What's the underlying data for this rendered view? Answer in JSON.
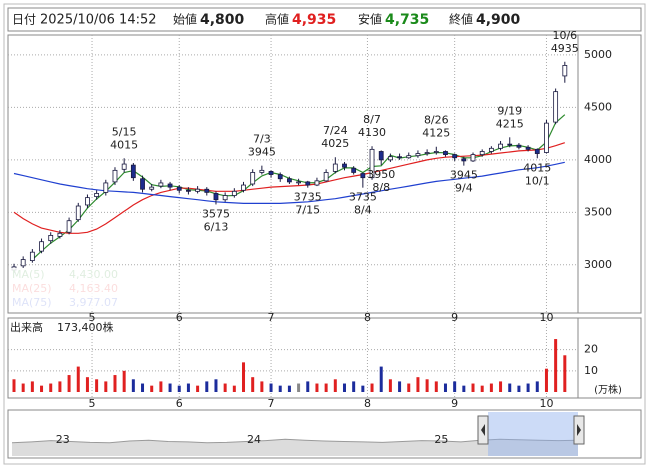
{
  "header": {
    "date_label": "日付",
    "datetime": "2025/10/06 14:52",
    "fields": [
      {
        "label": "始値",
        "value": "4,800"
      },
      {
        "label": "高値",
        "value": "4,935"
      },
      {
        "label": "安値",
        "value": "4,735"
      },
      {
        "label": "終値",
        "value": "4,900"
      }
    ]
  },
  "chart_data": [
    {
      "type": "candlestick",
      "x": [
        0,
        2,
        4,
        6,
        8,
        10,
        12,
        14,
        16,
        18,
        20,
        22,
        24,
        26,
        28,
        30,
        32,
        34,
        36,
        38,
        40,
        42,
        44,
        46,
        48,
        50,
        52,
        54,
        56,
        58,
        60,
        62,
        64,
        66,
        68,
        70,
        72,
        74,
        76,
        78,
        80,
        82,
        84,
        86,
        88,
        90,
        92,
        94,
        96,
        98,
        100,
        102,
        104,
        106,
        108,
        110,
        112,
        114,
        116,
        118,
        120
      ],
      "candles": [
        {
          "open": 2950,
          "high": 3010,
          "low": 2920,
          "close": 2980
        },
        {
          "open": 2990,
          "high": 3080,
          "low": 2970,
          "close": 3050
        },
        {
          "open": 3040,
          "high": 3150,
          "low": 3020,
          "close": 3120
        },
        {
          "open": 3130,
          "high": 3250,
          "low": 3110,
          "close": 3220
        },
        {
          "open": 3230,
          "high": 3310,
          "low": 3200,
          "close": 3280
        },
        {
          "open": 3270,
          "high": 3330,
          "low": 3250,
          "close": 3300
        },
        {
          "open": 3310,
          "high": 3450,
          "low": 3290,
          "close": 3420
        },
        {
          "open": 3430,
          "high": 3590,
          "low": 3410,
          "close": 3560
        },
        {
          "open": 3570,
          "high": 3670,
          "low": 3540,
          "close": 3640
        },
        {
          "open": 3650,
          "high": 3710,
          "low": 3620,
          "close": 3680
        },
        {
          "open": 3690,
          "high": 3810,
          "low": 3660,
          "close": 3780
        },
        {
          "open": 3790,
          "high": 3930,
          "low": 3760,
          "close": 3900
        },
        {
          "open": 3910,
          "high": 4015,
          "low": 3880,
          "close": 3960
        },
        {
          "open": 3950,
          "high": 3970,
          "low": 3800,
          "close": 3830
        },
        {
          "open": 3820,
          "high": 3850,
          "low": 3690,
          "close": 3720
        },
        {
          "open": 3720,
          "high": 3770,
          "low": 3700,
          "close": 3740
        },
        {
          "open": 3750,
          "high": 3810,
          "low": 3730,
          "close": 3780
        },
        {
          "open": 3770,
          "high": 3790,
          "low": 3710,
          "close": 3740
        },
        {
          "open": 3740,
          "high": 3760,
          "low": 3680,
          "close": 3710
        },
        {
          "open": 3710,
          "high": 3740,
          "low": 3670,
          "close": 3700
        },
        {
          "open": 3700,
          "high": 3750,
          "low": 3680,
          "close": 3720
        },
        {
          "open": 3720,
          "high": 3740,
          "low": 3660,
          "close": 3690
        },
        {
          "open": 3680,
          "high": 3700,
          "low": 3575,
          "close": 3620
        },
        {
          "open": 3620,
          "high": 3690,
          "low": 3600,
          "close": 3660
        },
        {
          "open": 3660,
          "high": 3730,
          "low": 3640,
          "close": 3700
        },
        {
          "open": 3710,
          "high": 3790,
          "low": 3690,
          "close": 3760
        },
        {
          "open": 3770,
          "high": 3910,
          "low": 3750,
          "close": 3880
        },
        {
          "open": 3880,
          "high": 3945,
          "low": 3860,
          "close": 3900
        },
        {
          "open": 3890,
          "high": 3900,
          "low": 3830,
          "close": 3860
        },
        {
          "open": 3860,
          "high": 3880,
          "low": 3790,
          "close": 3820
        },
        {
          "open": 3820,
          "high": 3840,
          "low": 3770,
          "close": 3790
        },
        {
          "open": 3790,
          "high": 3820,
          "low": 3760,
          "close": 3790
        },
        {
          "open": 3790,
          "high": 3800,
          "low": 3735,
          "close": 3760
        },
        {
          "open": 3760,
          "high": 3830,
          "low": 3750,
          "close": 3800
        },
        {
          "open": 3800,
          "high": 3910,
          "low": 3790,
          "close": 3880
        },
        {
          "open": 3890,
          "high": 4025,
          "low": 3870,
          "close": 3960
        },
        {
          "open": 3960,
          "high": 3980,
          "low": 3900,
          "close": 3930
        },
        {
          "open": 3920,
          "high": 3940,
          "low": 3860,
          "close": 3880
        },
        {
          "open": 3870,
          "high": 3880,
          "low": 3735,
          "close": 3830
        },
        {
          "open": 3830,
          "high": 4130,
          "low": 3810,
          "close": 4100
        },
        {
          "open": 4080,
          "high": 4090,
          "low": 3950,
          "close": 4000
        },
        {
          "open": 4000,
          "high": 4060,
          "low": 3980,
          "close": 4030
        },
        {
          "open": 4030,
          "high": 4060,
          "low": 4000,
          "close": 4020
        },
        {
          "open": 4020,
          "high": 4070,
          "low": 4010,
          "close": 4040
        },
        {
          "open": 4040,
          "high": 4090,
          "low": 4020,
          "close": 4060
        },
        {
          "open": 4060,
          "high": 4100,
          "low": 4040,
          "close": 4070
        },
        {
          "open": 4070,
          "high": 4125,
          "low": 4050,
          "close": 4080
        },
        {
          "open": 4080,
          "high": 4090,
          "low": 4030,
          "close": 4050
        },
        {
          "open": 4050,
          "high": 4060,
          "low": 3990,
          "close": 4020
        },
        {
          "open": 4010,
          "high": 4030,
          "low": 3945,
          "close": 3990
        },
        {
          "open": 3990,
          "high": 4070,
          "low": 3980,
          "close": 4050
        },
        {
          "open": 4050,
          "high": 4100,
          "low": 4030,
          "close": 4080
        },
        {
          "open": 4080,
          "high": 4130,
          "low": 4060,
          "close": 4110
        },
        {
          "open": 4110,
          "high": 4180,
          "low": 4090,
          "close": 4150
        },
        {
          "open": 4150,
          "high": 4215,
          "low": 4120,
          "close": 4140
        },
        {
          "open": 4140,
          "high": 4160,
          "low": 4100,
          "close": 4120
        },
        {
          "open": 4120,
          "high": 4140,
          "low": 4080,
          "close": 4100
        },
        {
          "open": 4100,
          "high": 4110,
          "low": 4015,
          "close": 4060
        },
        {
          "open": 4070,
          "high": 4380,
          "low": 4060,
          "close": 4350
        },
        {
          "open": 4360,
          "high": 4680,
          "low": 4340,
          "close": 4650
        },
        {
          "open": 4800,
          "high": 4935,
          "low": 4735,
          "close": 4900
        }
      ],
      "up_color": "#ffffff",
      "down_color": "#1c2c8c",
      "edge_color": "#1a1a40",
      "series": [
        {
          "name": "MA(5)",
          "color": "#2e8b2e",
          "last_label": "4,430.00",
          "values": [
            null,
            null,
            3050,
            3130,
            3207,
            3267,
            3333,
            3427,
            3540,
            3627,
            3700,
            3787,
            3880,
            3897,
            3837,
            3763,
            3747,
            3753,
            3743,
            3717,
            3710,
            3703,
            3677,
            3657,
            3660,
            3707,
            3780,
            3847,
            3880,
            3860,
            3823,
            3800,
            3780,
            3783,
            3813,
            3880,
            3923,
            3923,
            3880,
            3937,
            3943,
            4043,
            4017,
            4030,
            4040,
            4057,
            4070,
            4067,
            4050,
            4020,
            4020,
            4040,
            4080,
            4113,
            4133,
            4137,
            4120,
            4093,
            4170,
            4353,
            4430
          ]
        },
        {
          "name": "MA(25)",
          "color": "#e02020",
          "last_label": "4,163.40",
          "values": [
            3500,
            3440,
            3390,
            3350,
            3330,
            3310,
            3300,
            3300,
            3310,
            3340,
            3390,
            3450,
            3510,
            3570,
            3620,
            3660,
            3690,
            3710,
            3730,
            3730,
            3720,
            3710,
            3700,
            3700,
            3700,
            3710,
            3720,
            3730,
            3740,
            3745,
            3750,
            3755,
            3760,
            3770,
            3790,
            3810,
            3830,
            3845,
            3860,
            3880,
            3900,
            3920,
            3940,
            3960,
            3980,
            4000,
            4015,
            4025,
            4030,
            4035,
            4040,
            4045,
            4055,
            4065,
            4075,
            4085,
            4090,
            4095,
            4110,
            4135,
            4163.4
          ]
        },
        {
          "name": "MA(75)",
          "color": "#2040d0",
          "last_label": "3,977.07",
          "values": [
            3870,
            3850,
            3830,
            3810,
            3790,
            3770,
            3755,
            3740,
            3725,
            3715,
            3705,
            3700,
            3695,
            3690,
            3680,
            3670,
            3660,
            3650,
            3640,
            3630,
            3620,
            3610,
            3600,
            3595,
            3590,
            3585,
            3585,
            3585,
            3585,
            3585,
            3590,
            3595,
            3600,
            3610,
            3620,
            3630,
            3645,
            3660,
            3675,
            3690,
            3705,
            3720,
            3735,
            3750,
            3765,
            3780,
            3795,
            3805,
            3815,
            3825,
            3835,
            3845,
            3860,
            3875,
            3890,
            3905,
            3915,
            3925,
            3940,
            3958,
            3977.07
          ]
        }
      ],
      "annotations": [
        {
          "date": "5/15",
          "value": 4015,
          "x": 24,
          "kind": "high"
        },
        {
          "date": "6/13",
          "value": 3575,
          "x": 44,
          "kind": "low"
        },
        {
          "date": "7/3",
          "value": 3945,
          "x": 54,
          "kind": "high"
        },
        {
          "date": "7/15",
          "value": 3735,
          "x": 64,
          "kind": "low"
        },
        {
          "date": "7/24",
          "value": 4025,
          "x": 70,
          "kind": "high"
        },
        {
          "date": "8/4",
          "value": 3735,
          "x": 76,
          "kind": "low"
        },
        {
          "date": "8/7",
          "value": 4130,
          "x": 78,
          "kind": "high"
        },
        {
          "date": "8/8",
          "value": 3950,
          "x": 80,
          "kind": "low"
        },
        {
          "date": "8/26",
          "value": 4125,
          "x": 92,
          "kind": "high"
        },
        {
          "date": "9/4",
          "value": 3945,
          "x": 98,
          "kind": "low"
        },
        {
          "date": "9/19",
          "value": 4215,
          "x": 108,
          "kind": "high"
        },
        {
          "date": "10/1",
          "value": 4015,
          "x": 114,
          "kind": "low"
        },
        {
          "date": "10/6",
          "value": 4935,
          "x": 120,
          "kind": "high"
        }
      ],
      "xlim": [
        0,
        122
      ],
      "xticks": [
        {
          "value": 17,
          "label": "5"
        },
        {
          "value": 36,
          "label": "6"
        },
        {
          "value": 56,
          "label": "7"
        },
        {
          "value": 77,
          "label": "8"
        },
        {
          "value": 96,
          "label": "9"
        },
        {
          "value": 116,
          "label": "10"
        }
      ],
      "ylim": [
        2550,
        5190
      ],
      "yticks": [
        3000,
        3500,
        4000,
        4500,
        5000
      ],
      "grid": true
    },
    {
      "type": "bar",
      "title": "出来高",
      "value_label": "173,400株",
      "unit": "(万株)",
      "values": [
        6,
        4,
        5,
        3,
        4,
        5,
        8,
        12,
        7,
        6,
        5,
        8,
        10,
        6,
        4,
        3,
        5,
        4,
        3,
        4,
        3,
        5,
        6,
        4,
        3,
        14,
        7,
        5,
        4,
        3,
        3,
        4,
        5,
        4,
        4,
        6,
        4,
        5,
        3,
        4,
        12,
        6,
        5,
        4,
        7,
        6,
        5,
        4,
        5,
        3,
        4,
        3,
        4,
        5,
        4,
        3,
        4,
        5,
        11,
        25,
        17.34
      ],
      "up_color": "#e02020",
      "down_color": "#1c2c9c",
      "flat_color": "#888888",
      "ylim": [
        0,
        34
      ],
      "yticks": [
        10,
        20
      ],
      "grid": true
    },
    {
      "type": "area",
      "color": "#9a9a9a",
      "fill": "#dcdcdc",
      "values": [
        30,
        32,
        35,
        33,
        31,
        30,
        34,
        36,
        33,
        32,
        30,
        31,
        33,
        35,
        38,
        36,
        34,
        33,
        32,
        31,
        33,
        35,
        34,
        32,
        36,
        38,
        37,
        36,
        35,
        36
      ],
      "xlim": [
        0,
        29
      ],
      "ylim": [
        0,
        100
      ],
      "xticks": [
        {
          "value": 2.6,
          "label": "23"
        },
        {
          "value": 12.4,
          "label": "24"
        },
        {
          "value": 22,
          "label": "25"
        }
      ]
    }
  ]
}
